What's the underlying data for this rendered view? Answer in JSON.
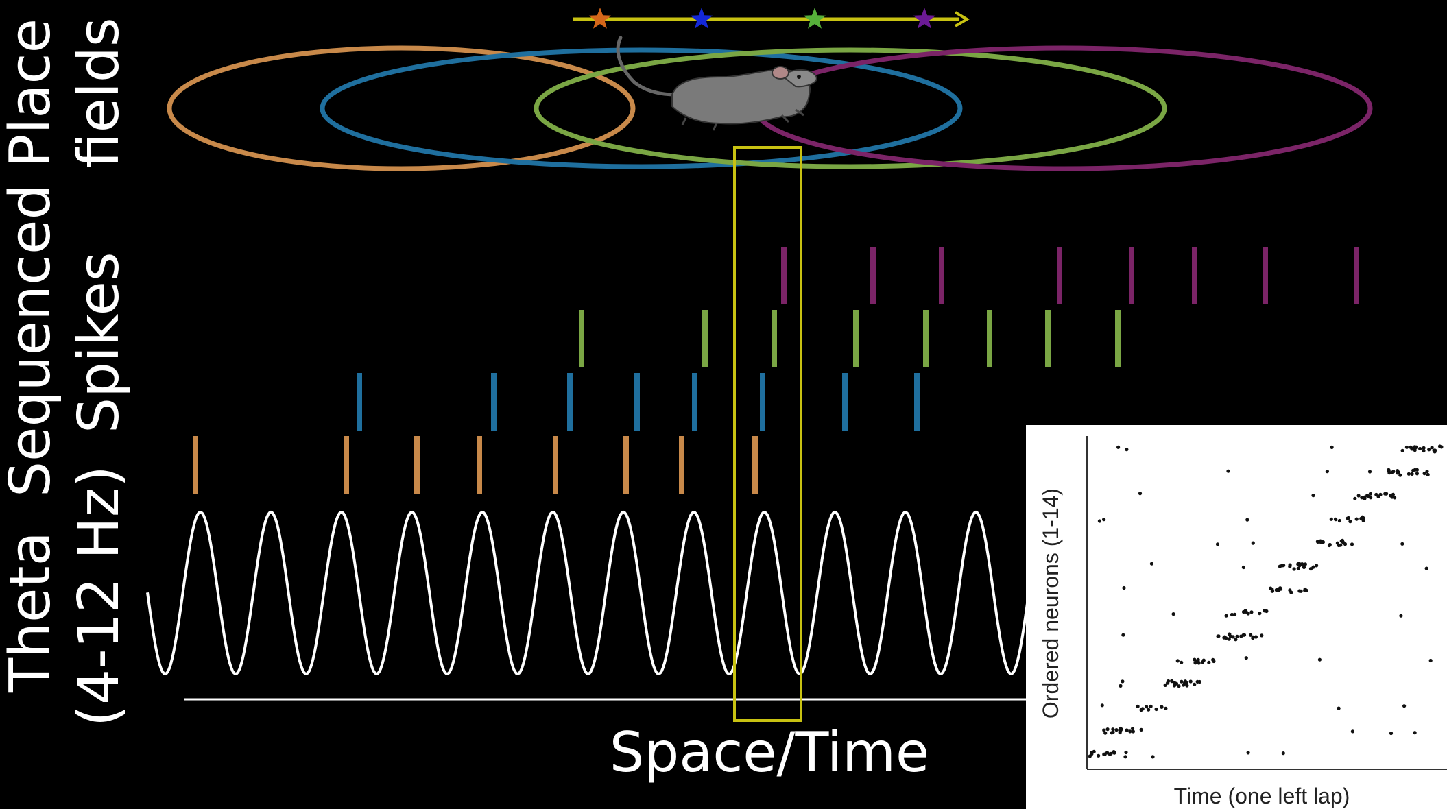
{
  "labels": {
    "place_fields": [
      "Place",
      "fields"
    ],
    "sequenced_spikes": [
      "Sequenced",
      "Spikes"
    ],
    "theta": [
      "Theta",
      "(4-12 Hz)"
    ],
    "space_time": "Space/Time"
  },
  "colors": {
    "background": "#000000",
    "orange": "#c8894a",
    "blue": "#1f6f9e",
    "green": "#7aa644",
    "purple": "#7b2467",
    "theta": "#ffffff",
    "highlight": "#c8c212",
    "track": "#c8c212",
    "star_orange": "#d5671a",
    "star_blue": "#1428d8",
    "star_green": "#56b03a",
    "star_purple": "#6c1a96"
  },
  "track": {
    "stars": [
      "orange",
      "blue",
      "green",
      "purple"
    ]
  },
  "place_fields": [
    "orange",
    "blue",
    "green",
    "purple"
  ],
  "spike_rows": [
    {
      "cell": "purple",
      "times": [
        1143,
        1273,
        1373,
        1545,
        1650,
        1742,
        1845,
        1978
      ]
    },
    {
      "cell": "green",
      "times": [
        848,
        1028,
        1129,
        1248,
        1350,
        1443,
        1528,
        1630
      ]
    },
    {
      "cell": "blue",
      "times": [
        524,
        720,
        831,
        929,
        1013,
        1112,
        1232,
        1337
      ]
    },
    {
      "cell": "orange",
      "times": [
        285,
        505,
        608,
        699,
        810,
        913,
        994,
        1101
      ]
    }
  ],
  "theta": {
    "cycles": 12.5
  },
  "inset": {
    "ylabel": "Ordered neurons (1-14)",
    "xlabel": "Time (one left lap)"
  }
}
